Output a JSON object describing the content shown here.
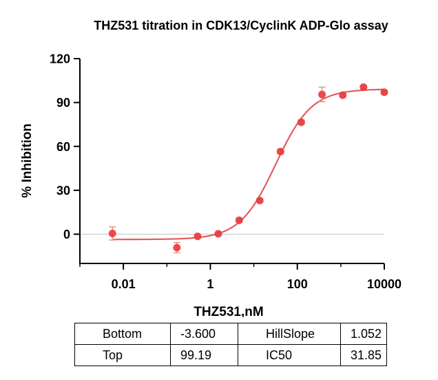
{
  "chart_data": {
    "type": "scatter",
    "title": "THZ531 titration in CDK13/CyclinK ADP-Glo assay",
    "xlabel": "THZ531,nM",
    "ylabel": "% Inhibition",
    "xscale": "log",
    "xlim": [
      0.001,
      10000
    ],
    "ylim": [
      -20,
      120
    ],
    "yticks": [
      0,
      30,
      60,
      90,
      120
    ],
    "ytick_labels": [
      "0",
      "30",
      "60",
      "90",
      "120"
    ],
    "xticks": [
      0.01,
      1,
      100,
      10000
    ],
    "xtick_labels": [
      "0.01",
      "1",
      "100",
      "10000"
    ],
    "grid": false,
    "marker_color": "#e8393b",
    "curve_color": "#e35d5d",
    "error_color": "#e89a8c",
    "zero_line_color": "#c8c8c8",
    "points": [
      {
        "x": 0.0056,
        "y": 0.5,
        "err": 4.5
      },
      {
        "x": 0.17,
        "y": -9.2,
        "err": 3.5
      },
      {
        "x": 0.51,
        "y": -1.5,
        "err": 1.0
      },
      {
        "x": 1.52,
        "y": 0.3,
        "err": 1.0
      },
      {
        "x": 4.6,
        "y": 9.5,
        "err": 1.0
      },
      {
        "x": 13.7,
        "y": 23.0,
        "err": 1.0
      },
      {
        "x": 41,
        "y": 56.5,
        "err": 1.5
      },
      {
        "x": 123,
        "y": 76.5,
        "err": 1.5
      },
      {
        "x": 370,
        "y": 95.5,
        "err": 5.0
      },
      {
        "x": 1110,
        "y": 95.0,
        "err": 1.0
      },
      {
        "x": 3330,
        "y": 100.5,
        "err": 1.0
      },
      {
        "x": 10000,
        "y": 97.0,
        "err": 1.0
      }
    ],
    "fit": {
      "bottom": -3.6,
      "top": 99.19,
      "hillslope": 1.052,
      "ic50": 31.85
    }
  },
  "params_table": {
    "rows": [
      [
        "Bottom",
        "-3.600",
        "HillSlope",
        "1.052"
      ],
      [
        "Top",
        "99.19",
        "IC50",
        "31.85"
      ]
    ]
  }
}
